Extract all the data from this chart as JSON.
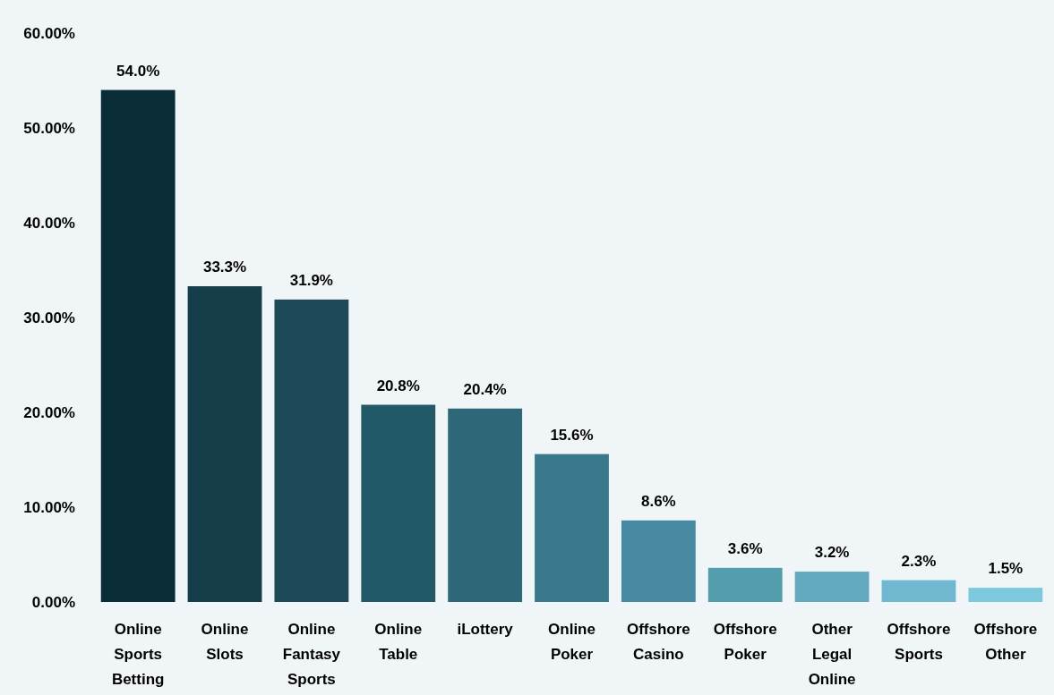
{
  "chart_data": {
    "type": "bar",
    "categories": [
      "Online Sports Betting",
      "Online Slots",
      "Online Fantasy Sports",
      "Online Table",
      "iLottery",
      "Online Poker",
      "Offshore Casino",
      "Offshore Poker",
      "Other Legal Online",
      "Offshore Sports",
      "Offshore Other"
    ],
    "values": [
      54.0,
      33.3,
      31.9,
      20.8,
      20.4,
      15.6,
      8.6,
      3.6,
      3.2,
      2.3,
      1.5
    ],
    "value_labels": [
      "54.0%",
      "33.3%",
      "31.9%",
      "20.8%",
      "20.4%",
      "15.6%",
      "8.6%",
      "3.6%",
      "3.2%",
      "2.3%",
      "1.5%"
    ],
    "colors": [
      "#0a2c36",
      "#153e4a",
      "#1c4a58",
      "#215a66",
      "#2e6878",
      "#3a798c",
      "#4789a0",
      "#539ead",
      "#62a9c0",
      "#6fb8d0",
      "#7ec8de"
    ],
    "ylim": [
      0,
      60
    ],
    "yticks": [
      {
        "value": 0,
        "label": "0.00%"
      },
      {
        "value": 10,
        "label": "10.00%"
      },
      {
        "value": 20,
        "label": "20.00%"
      },
      {
        "value": 30,
        "label": "30.00%"
      },
      {
        "value": 40,
        "label": "40.00%"
      },
      {
        "value": 50,
        "label": "50.00%"
      },
      {
        "value": 60,
        "label": "60.00%"
      }
    ],
    "grid": false
  }
}
